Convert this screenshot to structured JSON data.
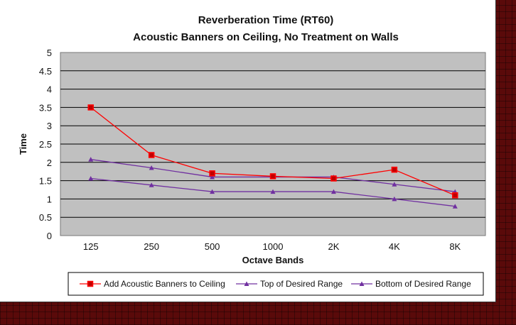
{
  "chart_data": {
    "type": "line",
    "title_line1": "Reverberation Time (RT60)",
    "title_line2": "Acoustic Banners on Ceiling, No Treatment on Walls",
    "xlabel": "Octave Bands",
    "ylabel": "Time",
    "categories": [
      "125",
      "250",
      "500",
      "1000",
      "2K",
      "4K",
      "8K"
    ],
    "ylim": [
      0,
      5
    ],
    "yticks": [
      "0",
      "0.5",
      "1",
      "1.5",
      "2",
      "2.5",
      "3",
      "3.5",
      "4",
      "4.5",
      "5"
    ],
    "grid": "horizontal",
    "plot_background": "#c0c0c0",
    "legend_position": "bottom",
    "series": [
      {
        "name": "Add Acoustic Banners to Ceiling",
        "color": "#ff0000",
        "marker": "square",
        "values": [
          3.5,
          2.2,
          1.7,
          1.62,
          1.56,
          1.8,
          1.1
        ]
      },
      {
        "name": "Top of Desired Range",
        "color": "#7030a0",
        "marker": "triangle",
        "values": [
          2.08,
          1.85,
          1.6,
          1.6,
          1.6,
          1.4,
          1.2
        ]
      },
      {
        "name": "Bottom of Desired Range",
        "color": "#7030a0",
        "marker": "triangle",
        "values": [
          1.56,
          1.38,
          1.2,
          1.2,
          1.2,
          1.0,
          0.8
        ]
      }
    ]
  }
}
